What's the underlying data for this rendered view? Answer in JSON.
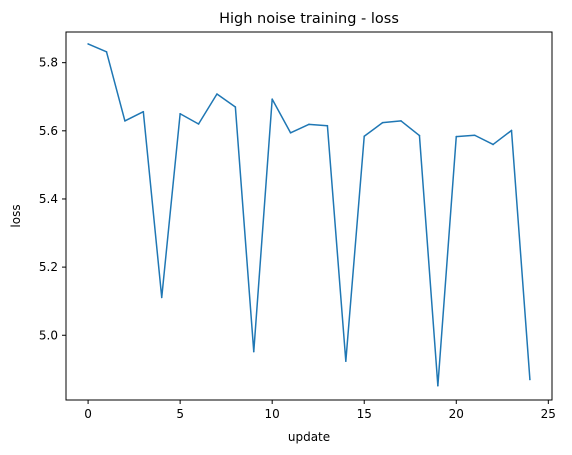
{
  "chart_data": {
    "type": "line",
    "title": "High noise training - loss",
    "xlabel": "update",
    "ylabel": "loss",
    "xlim": [
      -1.2,
      25.2
    ],
    "ylim": [
      4.81,
      5.89
    ],
    "xticks": [
      0,
      5,
      10,
      15,
      20,
      25
    ],
    "yticks": [
      5.0,
      5.2,
      5.4,
      5.6,
      5.8
    ],
    "yticks_labels": [
      "5.0",
      "5.2",
      "5.4",
      "5.6",
      "5.8"
    ],
    "grid": false,
    "series": [
      {
        "color": "#1f77b4",
        "x": [
          0,
          1,
          2,
          3,
          4,
          5,
          6,
          7,
          8,
          9,
          10,
          11,
          12,
          13,
          14,
          15,
          16,
          17,
          18,
          19,
          20,
          21,
          22,
          23,
          24
        ],
        "y": [
          5.855,
          5.832,
          5.629,
          5.656,
          5.111,
          5.65,
          5.62,
          5.708,
          5.67,
          4.952,
          5.693,
          5.594,
          5.619,
          5.615,
          4.924,
          5.584,
          5.624,
          5.629,
          5.586,
          4.852,
          5.583,
          5.587,
          5.56,
          5.601,
          4.87
        ]
      }
    ]
  }
}
